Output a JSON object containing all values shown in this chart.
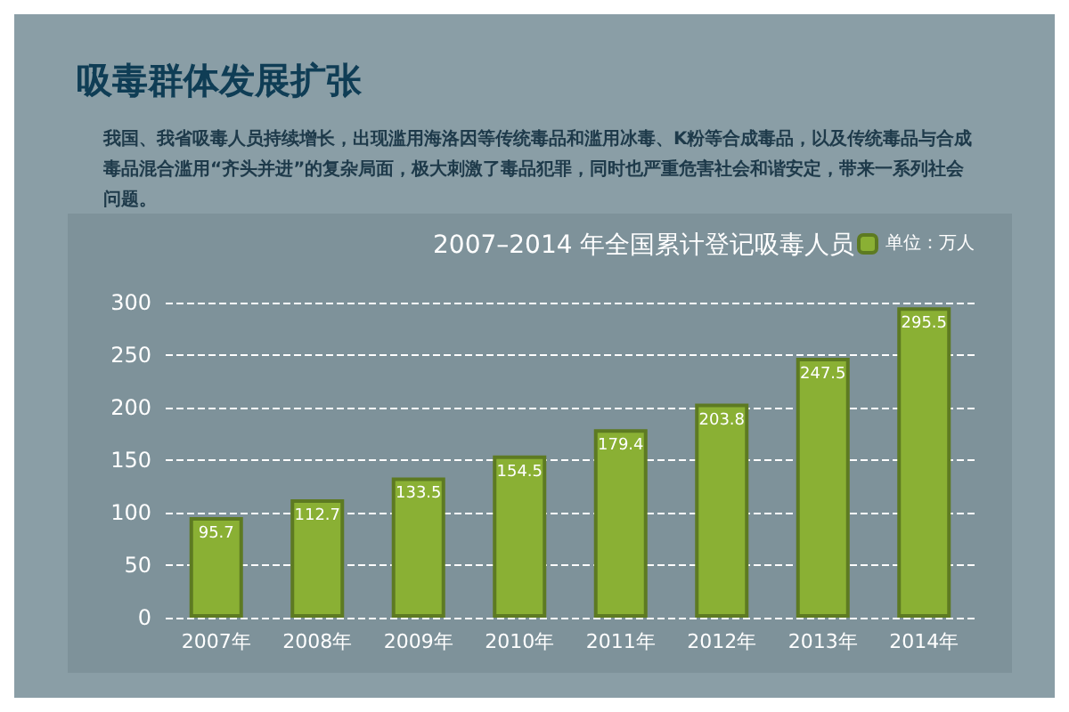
{
  "chart_data": {
    "type": "bar",
    "title": "吸毒群体发展扩张",
    "subtitle": "2007–2014 年全国累计登记吸毒人员",
    "annotations": [
      "我国、我省吸毒人员持续增长，出现滥用海洛因等传统毒品和滥用冰毒、K粉等合成毒品，以及传统毒品与合成毒品混合滥用“齐头并进”的复杂局面，极大刺激了毒品犯罪，同时也严重危害社会和谐安定，带来一系列社会问题。"
    ],
    "categories": [
      "2007年",
      "2008年",
      "2009年",
      "2010年",
      "2011年",
      "2012年",
      "2013年",
      "2014年"
    ],
    "series": [
      {
        "name": "单位：万人",
        "color": "#8ab034",
        "values": [
          95.7,
          112.7,
          133.5,
          154.5,
          179.4,
          203.8,
          247.5,
          295.5
        ]
      }
    ],
    "ylim": [
      0,
      300
    ],
    "yticks": [
      0,
      50,
      100,
      150,
      200,
      250,
      300
    ],
    "grid": "y",
    "legend": "top right",
    "data_labels": true
  }
}
